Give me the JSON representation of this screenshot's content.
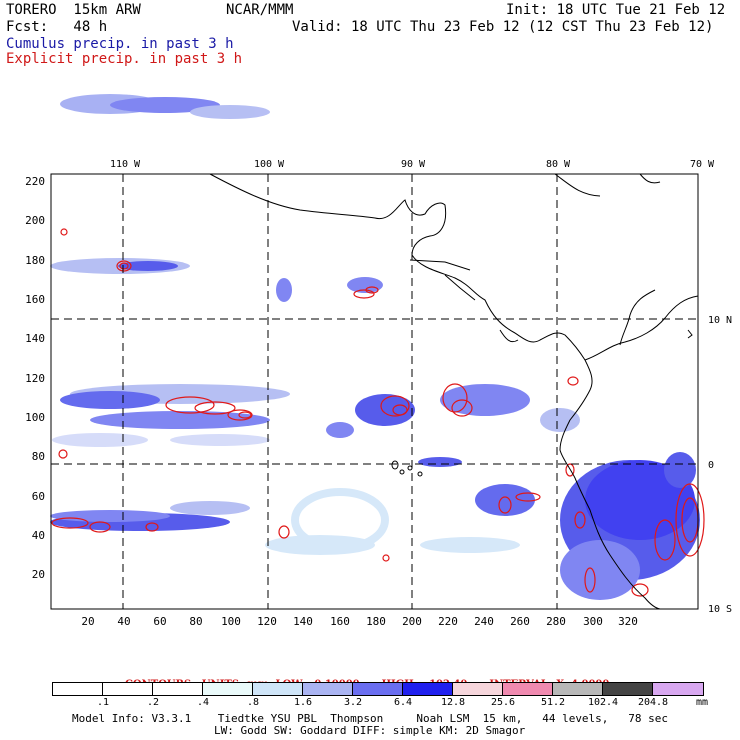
{
  "header": {
    "model": "TORERO  15km ARW",
    "org": "NCAR/MMM",
    "init": "Init: 18 UTC Tue 21 Feb 12",
    "fcst": "Fcst:   48 h",
    "valid": "Valid: 18 UTC Thu 23 Feb 12 (12 CST Thu 23 Feb 12)",
    "field1": "Cumulus precip. in past 3 h",
    "field2": "Explicit precip. in past 3 h"
  },
  "map": {
    "lon_labels": [
      "110 W",
      "100 W",
      "90 W",
      "80 W",
      "70 W"
    ],
    "lat_labels": [
      "10 N",
      "0",
      "10 S"
    ],
    "y_ticks": [
      "220",
      "200",
      "180",
      "160",
      "140",
      "120",
      "100",
      "80",
      "60",
      "40",
      "20"
    ],
    "x_ticks": [
      "20",
      "40",
      "60",
      "80",
      "100",
      "120",
      "140",
      "160",
      "180",
      "200",
      "220",
      "240",
      "260",
      "280",
      "300",
      "320"
    ]
  },
  "contours": {
    "units": "CONTOURS:  UNITS=mm  LOW= 0.10000",
    "high": "HIGH=  102.40",
    "interval": "INTERVAL=X  4.0000"
  },
  "colorbar": {
    "labels": [
      ".1",
      ".2",
      ".4",
      ".8",
      "1.6",
      "3.2",
      "6.4",
      "12.8",
      "25.6",
      "51.2",
      "102.4",
      "204.8"
    ],
    "unit": "mm",
    "colors": [
      "#ffffff",
      "#ffffff",
      "#ffffff",
      "#eafafa",
      "#cfe5f8",
      "#aab4f2",
      "#6a6ef0",
      "#2020ee",
      "#f6d6dc",
      "#f08ab0",
      "#b8b8b8",
      "#444444",
      "#d8a8f0"
    ]
  },
  "footer": {
    "line1": "Model Info: V3.3.1    Tiedtke YSU PBL  Thompson     Noah LSM  15 km,   44 levels,   78 sec",
    "line2": "LW: Godd SW: Goddard DIFF: simple KM: 2D Smagor"
  }
}
